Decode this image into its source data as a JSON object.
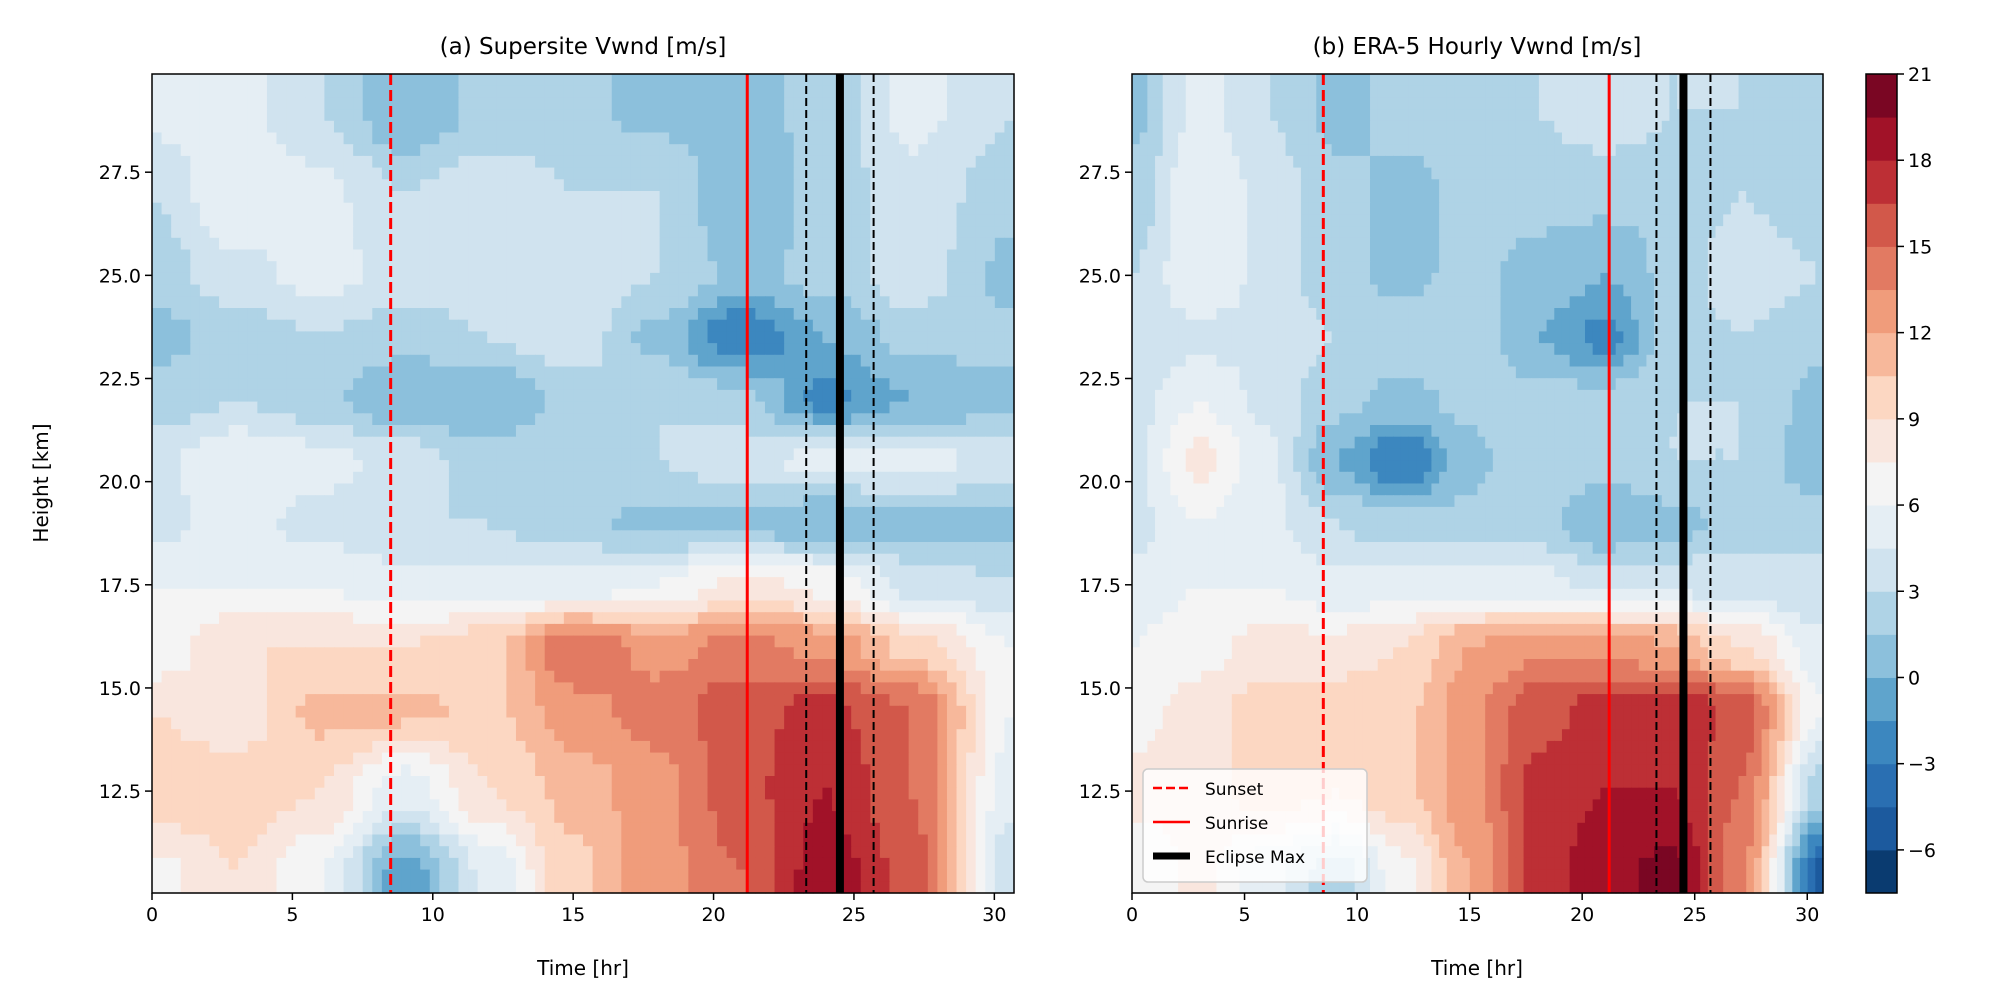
{
  "chart_data": [
    {
      "type": "heatmap",
      "title": "(a) Supersite Vwnd [m/s]",
      "xlabel": "Time [hr]",
      "ylabel": "Height [km]",
      "xlim": [
        0,
        30.7
      ],
      "ylim": [
        10.03,
        29.88
      ],
      "xticks": [
        "0",
        "5",
        "10",
        "15",
        "20",
        "25",
        "30"
      ],
      "yticks": [
        "12.5",
        "15.0",
        "17.5",
        "20.0",
        "22.5",
        "25.0",
        "27.5"
      ],
      "x": [
        0,
        3,
        6,
        9,
        12,
        15,
        18,
        21,
        24,
        27,
        30.7
      ],
      "y": [
        10.5,
        12.5,
        14.5,
        16,
        17.5,
        19,
        20.5,
        22,
        23.5,
        25,
        27,
        29
      ],
      "z": [
        [
          7,
          9,
          6,
          -1,
          5,
          10,
          13,
          15,
          19,
          16,
          3
        ],
        [
          10,
          10,
          9,
          5,
          9,
          11,
          13,
          16,
          18,
          15,
          5
        ],
        [
          9,
          8,
          11,
          11,
          10,
          13,
          14,
          16,
          17,
          15,
          6
        ],
        [
          6,
          9,
          9,
          9,
          10,
          15,
          13,
          14,
          13,
          10,
          6
        ],
        [
          6,
          6,
          6,
          5,
          5,
          5,
          6,
          8,
          7,
          4,
          3
        ],
        [
          4,
          5,
          4,
          3,
          3,
          2,
          1,
          1,
          0,
          1,
          1
        ],
        [
          4,
          6,
          5,
          4,
          2,
          3,
          3,
          4,
          5,
          5,
          4
        ],
        [
          2,
          3,
          2,
          0,
          0,
          2,
          3,
          2,
          -2,
          0,
          1
        ],
        [
          1,
          2,
          3,
          2,
          3,
          4,
          1,
          -3,
          0,
          2,
          2
        ],
        [
          2,
          4,
          5,
          4,
          4,
          4,
          3,
          1,
          2,
          4,
          1
        ],
        [
          3,
          6,
          5,
          3,
          4,
          3,
          3,
          0,
          2,
          4,
          2
        ],
        [
          5,
          5,
          3,
          0,
          2,
          2,
          1,
          1,
          2,
          5,
          3
        ]
      ],
      "vlines": {
        "sunset": 8.5,
        "sunrise": 21.2,
        "eclipse_max": 24.5,
        "eclipse_bounds": [
          23.3,
          25.7
        ]
      },
      "show_legend": false
    },
    {
      "type": "heatmap",
      "title": "(b) ERA-5 Hourly Vwnd [m/s]",
      "xlabel": "Time [hr]",
      "ylabel": "",
      "xlim": [
        0,
        30.7
      ],
      "ylim": [
        10.03,
        29.88
      ],
      "xticks": [
        "0",
        "5",
        "10",
        "15",
        "20",
        "25",
        "30"
      ],
      "yticks": [
        "12.5",
        "15.0",
        "17.5",
        "20.0",
        "22.5",
        "25.0",
        "27.5"
      ],
      "x": [
        0,
        3,
        6,
        9,
        12,
        15,
        18,
        21,
        24,
        27,
        30.7
      ],
      "y": [
        10.5,
        12.5,
        14.5,
        16,
        17.5,
        19,
        20.5,
        22,
        23.5,
        25,
        27,
        29
      ],
      "z": [
        [
          6,
          8,
          5,
          2,
          7,
          12,
          17,
          19,
          20,
          14,
          -5
        ],
        [
          8,
          8,
          10,
          9,
          10,
          13,
          17,
          18,
          18,
          15,
          2
        ],
        [
          7,
          8,
          10,
          10,
          10,
          13,
          16,
          17,
          18,
          16,
          6
        ],
        [
          6,
          7,
          8,
          8,
          9,
          12,
          13,
          13,
          12,
          9,
          5
        ],
        [
          5,
          6,
          6,
          5,
          5,
          5,
          5,
          4,
          4,
          4,
          3
        ],
        [
          4,
          6,
          5,
          3,
          2,
          2,
          2,
          0,
          1,
          2,
          3
        ],
        [
          4,
          8,
          5,
          0,
          -3,
          1,
          3,
          2,
          3,
          3,
          0
        ],
        [
          4,
          6,
          4,
          2,
          1,
          2,
          2,
          2,
          3,
          3,
          1
        ],
        [
          3,
          4,
          4,
          3,
          3,
          3,
          0,
          -2,
          2,
          3,
          2
        ],
        [
          3,
          6,
          4,
          2,
          1,
          2,
          1,
          0,
          2,
          4,
          3
        ],
        [
          2,
          6,
          4,
          2,
          1,
          2,
          2,
          2,
          2,
          3,
          2
        ],
        [
          1,
          5,
          3,
          1,
          2,
          2,
          3,
          4,
          3,
          3,
          2
        ]
      ],
      "vlines": {
        "sunset": 8.5,
        "sunrise": 21.2,
        "eclipse_max": 24.5,
        "eclipse_bounds": [
          23.3,
          25.7
        ]
      },
      "show_legend": true
    }
  ],
  "legend": {
    "placement": "lower-left",
    "entries": [
      {
        "label": "Sunset",
        "color": "#ff0000",
        "style": "dashed"
      },
      {
        "label": "Sunrise",
        "color": "#ff0000",
        "style": "solid"
      },
      {
        "label": "Eclipse Max",
        "color": "#000000",
        "style": "thick"
      }
    ]
  },
  "colorbar": {
    "levels": [
      -7.5,
      -6,
      -4.5,
      -3,
      -1.5,
      0,
      1.5,
      3,
      4.5,
      6,
      7.5,
      9,
      10.5,
      12,
      13.5,
      15,
      16.5,
      18,
      19.5,
      21
    ],
    "ticks": [
      -6,
      -3,
      0,
      3,
      6,
      9,
      12,
      15,
      18,
      21
    ],
    "tick_labels": [
      "−6",
      "−3",
      "0",
      "3",
      "6",
      "9",
      "12",
      "15",
      "18",
      "21"
    ],
    "colors": [
      "#0a3b70",
      "#1c5a9e",
      "#2a6fb2",
      "#3c87bf",
      "#5fa4cc",
      "#8cc0dc",
      "#afd3e6",
      "#d0e3ef",
      "#e5eef4",
      "#f4f4f4",
      "#f9e6de",
      "#fcd7c2",
      "#f7b89b",
      "#f09c7b",
      "#e27a62",
      "#d2584a",
      "#bd2f35",
      "#a11228",
      "#7a0623"
    ]
  }
}
